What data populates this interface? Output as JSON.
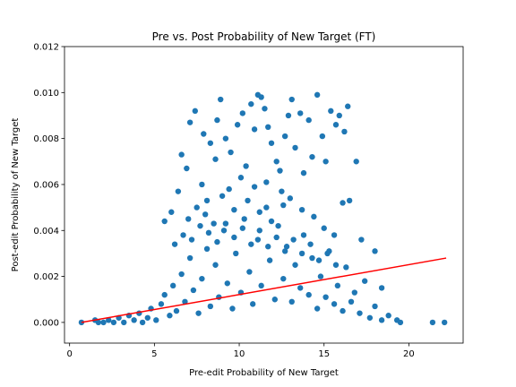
{
  "chart_data": {
    "type": "scatter",
    "title": "Pre vs. Post Probability of New Target (FT)",
    "xlabel": "Pre-edit Probability of New Target",
    "ylabel": "Post-edit Probability of New Target",
    "xlim": [
      -0.3,
      23.2
    ],
    "ylim": [
      -0.0009,
      0.012
    ],
    "xticks": [
      0,
      5,
      10,
      15,
      20
    ],
    "xtick_labels": [
      "0",
      "5",
      "10",
      "15",
      "20"
    ],
    "yticks": [
      0.0,
      0.002,
      0.004,
      0.006,
      0.008,
      0.01,
      0.012
    ],
    "ytick_labels": [
      "0.000",
      "0.002",
      "0.004",
      "0.006",
      "0.008",
      "0.010",
      "0.012"
    ],
    "grid": false,
    "colors": {
      "points": "#1f77b4",
      "fit_line": "#ff0000"
    },
    "fit_line": {
      "x": [
        0.7,
        22.2
      ],
      "y": [
        0.0,
        0.0028
      ]
    },
    "points": [
      [
        0.7,
        0.0
      ],
      [
        1.5,
        0.0001
      ],
      [
        1.7,
        0.0
      ],
      [
        2.0,
        0.0
      ],
      [
        2.3,
        0.0001
      ],
      [
        2.6,
        0.0
      ],
      [
        2.9,
        0.0002
      ],
      [
        3.2,
        0.0
      ],
      [
        3.5,
        0.0003
      ],
      [
        3.8,
        0.0001
      ],
      [
        4.1,
        0.0004
      ],
      [
        4.3,
        0.0
      ],
      [
        4.6,
        0.0002
      ],
      [
        4.8,
        0.0006
      ],
      [
        5.1,
        0.0001
      ],
      [
        5.4,
        0.0008
      ],
      [
        5.6,
        0.0012
      ],
      [
        5.9,
        0.0003
      ],
      [
        6.1,
        0.0016
      ],
      [
        6.3,
        0.0005
      ],
      [
        6.6,
        0.0021
      ],
      [
        6.8,
        0.0009
      ],
      [
        7.1,
        0.0028
      ],
      [
        7.3,
        0.0014
      ],
      [
        7.6,
        0.0004
      ],
      [
        7.8,
        0.0019
      ],
      [
        8.1,
        0.0032
      ],
      [
        8.3,
        0.0007
      ],
      [
        8.6,
        0.0025
      ],
      [
        8.8,
        0.0011
      ],
      [
        9.1,
        0.004
      ],
      [
        9.3,
        0.0017
      ],
      [
        9.6,
        0.0006
      ],
      [
        9.8,
        0.003
      ],
      [
        10.1,
        0.0013
      ],
      [
        10.3,
        0.0045
      ],
      [
        10.6,
        0.0022
      ],
      [
        10.8,
        0.0008
      ],
      [
        11.1,
        0.0036
      ],
      [
        11.3,
        0.0016
      ],
      [
        11.6,
        0.005
      ],
      [
        11.8,
        0.0027
      ],
      [
        12.1,
        0.001
      ],
      [
        12.3,
        0.0042
      ],
      [
        12.6,
        0.0019
      ],
      [
        12.8,
        0.0033
      ],
      [
        13.1,
        0.0009
      ],
      [
        13.3,
        0.0025
      ],
      [
        13.6,
        0.0015
      ],
      [
        13.8,
        0.0038
      ],
      [
        14.1,
        0.0012
      ],
      [
        14.3,
        0.0028
      ],
      [
        14.6,
        0.0006
      ],
      [
        14.8,
        0.002
      ],
      [
        15.1,
        0.0011
      ],
      [
        15.3,
        0.0031
      ],
      [
        15.6,
        0.0008
      ],
      [
        15.8,
        0.0016
      ],
      [
        16.1,
        0.0005
      ],
      [
        16.3,
        0.0024
      ],
      [
        16.6,
        0.0009
      ],
      [
        16.8,
        0.0013
      ],
      [
        17.1,
        0.0004
      ],
      [
        17.4,
        0.0018
      ],
      [
        17.7,
        0.0002
      ],
      [
        18.0,
        0.0007
      ],
      [
        18.4,
        0.0001
      ],
      [
        18.8,
        0.0003
      ],
      [
        19.3,
        0.0001
      ],
      [
        19.5,
        0.0
      ],
      [
        21.4,
        0.0
      ],
      [
        22.1,
        0.0
      ],
      [
        5.6,
        0.0044
      ],
      [
        6.0,
        0.0048
      ],
      [
        6.4,
        0.0057
      ],
      [
        6.6,
        0.0073
      ],
      [
        6.9,
        0.0067
      ],
      [
        7.1,
        0.0087
      ],
      [
        7.4,
        0.0092
      ],
      [
        7.9,
        0.0082
      ],
      [
        8.3,
        0.0078
      ],
      [
        8.6,
        0.0071
      ],
      [
        8.7,
        0.0088
      ],
      [
        8.9,
        0.0097
      ],
      [
        9.2,
        0.008
      ],
      [
        9.5,
        0.0074
      ],
      [
        9.9,
        0.0086
      ],
      [
        10.2,
        0.0091
      ],
      [
        10.4,
        0.0068
      ],
      [
        10.7,
        0.0095
      ],
      [
        10.9,
        0.0084
      ],
      [
        11.1,
        0.0099
      ],
      [
        11.3,
        0.0098
      ],
      [
        11.5,
        0.0093
      ],
      [
        11.7,
        0.0085
      ],
      [
        11.9,
        0.0078
      ],
      [
        12.2,
        0.007
      ],
      [
        12.4,
        0.0066
      ],
      [
        12.7,
        0.0081
      ],
      [
        12.9,
        0.009
      ],
      [
        13.1,
        0.0097
      ],
      [
        13.3,
        0.0076
      ],
      [
        13.6,
        0.0091
      ],
      [
        13.8,
        0.0065
      ],
      [
        14.1,
        0.0088
      ],
      [
        14.3,
        0.0072
      ],
      [
        14.6,
        0.0099
      ],
      [
        14.9,
        0.0081
      ],
      [
        15.1,
        0.007
      ],
      [
        15.4,
        0.0092
      ],
      [
        15.7,
        0.0086
      ],
      [
        15.9,
        0.009
      ],
      [
        16.2,
        0.0083
      ],
      [
        16.4,
        0.0094
      ],
      [
        16.9,
        0.007
      ],
      [
        16.1,
        0.0052
      ],
      [
        16.5,
        0.0053
      ],
      [
        17.2,
        0.0036
      ],
      [
        18.0,
        0.0031
      ],
      [
        18.4,
        0.0015
      ],
      [
        7.8,
        0.006
      ],
      [
        8.1,
        0.0053
      ],
      [
        9.4,
        0.0058
      ],
      [
        10.1,
        0.0063
      ],
      [
        10.9,
        0.0059
      ],
      [
        11.6,
        0.0061
      ],
      [
        12.5,
        0.0057
      ],
      [
        13.0,
        0.0054
      ],
      [
        13.7,
        0.0049
      ],
      [
        14.4,
        0.0046
      ],
      [
        15.0,
        0.0041
      ],
      [
        15.6,
        0.0038
      ],
      [
        7.0,
        0.0045
      ],
      [
        7.5,
        0.005
      ],
      [
        8.0,
        0.0047
      ],
      [
        8.5,
        0.0043
      ],
      [
        9.0,
        0.0055
      ],
      [
        9.7,
        0.0049
      ],
      [
        10.5,
        0.0053
      ],
      [
        11.2,
        0.0048
      ],
      [
        11.9,
        0.0044
      ],
      [
        12.6,
        0.0051
      ],
      [
        6.2,
        0.0034
      ],
      [
        6.7,
        0.0038
      ],
      [
        7.2,
        0.0036
      ],
      [
        7.7,
        0.0042
      ],
      [
        8.2,
        0.0039
      ],
      [
        8.7,
        0.0035
      ],
      [
        9.2,
        0.0043
      ],
      [
        9.7,
        0.0037
      ],
      [
        10.2,
        0.0041
      ],
      [
        10.7,
        0.0034
      ],
      [
        11.2,
        0.004
      ],
      [
        11.7,
        0.0033
      ],
      [
        12.2,
        0.0037
      ],
      [
        12.7,
        0.0031
      ],
      [
        13.2,
        0.0036
      ],
      [
        13.7,
        0.003
      ],
      [
        14.2,
        0.0034
      ],
      [
        14.7,
        0.0027
      ],
      [
        15.2,
        0.003
      ],
      [
        15.7,
        0.0025
      ]
    ]
  }
}
